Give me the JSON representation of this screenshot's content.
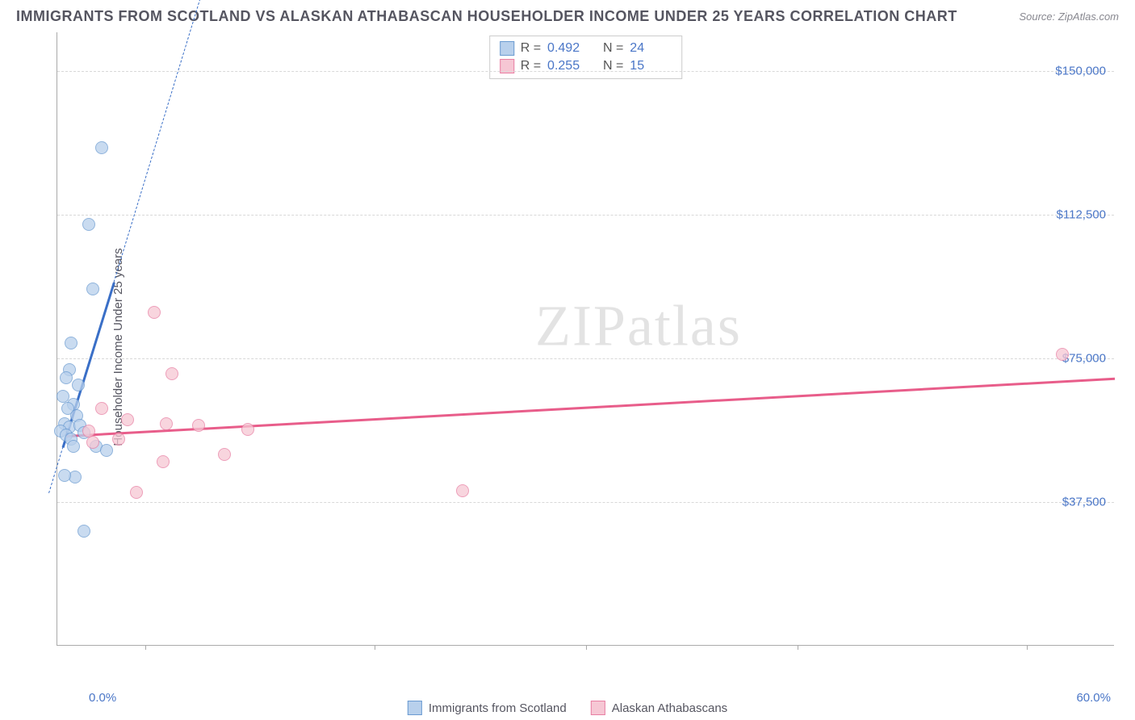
{
  "header": {
    "title": "IMMIGRANTS FROM SCOTLAND VS ALASKAN ATHABASCAN HOUSEHOLDER INCOME UNDER 25 YEARS CORRELATION CHART",
    "source": "Source: ZipAtlas.com"
  },
  "watermark": {
    "text_bold": "ZIP",
    "text_thin": "atlas"
  },
  "chart": {
    "type": "scatter",
    "background_color": "#ffffff",
    "grid_color": "#d8d8d8",
    "axis_color": "#aaaaaa",
    "y_axis": {
      "title": "Householder Income Under 25 years",
      "min": 0,
      "max": 160000,
      "ticks": [
        {
          "value": 37500,
          "label": "$37,500"
        },
        {
          "value": 75000,
          "label": "$75,000"
        },
        {
          "value": 112500,
          "label": "$112,500"
        },
        {
          "value": 150000,
          "label": "$150,000"
        }
      ],
      "label_color": "#4a76c7",
      "label_fontsize": 15
    },
    "x_axis": {
      "min": 0,
      "max": 60,
      "left_label": "0.0%",
      "right_label": "60.0%",
      "tick_positions": [
        5,
        18,
        30,
        42,
        55
      ],
      "label_color": "#4a76c7"
    },
    "series": [
      {
        "name": "Immigrants from Scotland",
        "marker_fill": "#b8d0ec",
        "marker_stroke": "#6b9bd1",
        "marker_opacity": 0.75,
        "marker_radius": 8,
        "trend_color": "#3a6fc7",
        "trend_width": 3,
        "R": "0.492",
        "N": "24",
        "points": [
          {
            "x": 2.5,
            "y": 130000
          },
          {
            "x": 1.8,
            "y": 110000
          },
          {
            "x": 2.0,
            "y": 93000
          },
          {
            "x": 0.8,
            "y": 79000
          },
          {
            "x": 0.7,
            "y": 72000
          },
          {
            "x": 0.5,
            "y": 70000
          },
          {
            "x": 1.2,
            "y": 68000
          },
          {
            "x": 0.3,
            "y": 65000
          },
          {
            "x": 0.9,
            "y": 63000
          },
          {
            "x": 0.6,
            "y": 62000
          },
          {
            "x": 1.1,
            "y": 60000
          },
          {
            "x": 0.4,
            "y": 58000
          },
          {
            "x": 0.7,
            "y": 57000
          },
          {
            "x": 1.3,
            "y": 57500
          },
          {
            "x": 0.2,
            "y": 56000
          },
          {
            "x": 0.5,
            "y": 55000
          },
          {
            "x": 1.5,
            "y": 55500
          },
          {
            "x": 0.8,
            "y": 54000
          },
          {
            "x": 2.2,
            "y": 52000
          },
          {
            "x": 0.9,
            "y": 52000
          },
          {
            "x": 2.8,
            "y": 51000
          },
          {
            "x": 1.0,
            "y": 44000
          },
          {
            "x": 0.4,
            "y": 44500
          },
          {
            "x": 1.5,
            "y": 30000
          }
        ],
        "trend": {
          "x1": 0.3,
          "y1": 52000,
          "x2": 3.2,
          "y2": 95000,
          "dash_x2": 8.5,
          "dash_y2": 175000
        }
      },
      {
        "name": "Alaskan Athabascans",
        "marker_fill": "#f6c7d4",
        "marker_stroke": "#e87fa3",
        "marker_opacity": 0.75,
        "marker_radius": 8,
        "trend_color": "#e85d8a",
        "trend_width": 3,
        "R": "0.255",
        "N": "15",
        "points": [
          {
            "x": 5.5,
            "y": 87000
          },
          {
            "x": 57.0,
            "y": 76000
          },
          {
            "x": 6.5,
            "y": 71000
          },
          {
            "x": 2.5,
            "y": 62000
          },
          {
            "x": 4.0,
            "y": 59000
          },
          {
            "x": 6.2,
            "y": 58000
          },
          {
            "x": 8.0,
            "y": 57500
          },
          {
            "x": 10.8,
            "y": 56500
          },
          {
            "x": 1.8,
            "y": 56000
          },
          {
            "x": 3.5,
            "y": 54000
          },
          {
            "x": 2.0,
            "y": 53000
          },
          {
            "x": 9.5,
            "y": 50000
          },
          {
            "x": 6.0,
            "y": 48000
          },
          {
            "x": 23.0,
            "y": 40500
          },
          {
            "x": 4.5,
            "y": 40000
          }
        ],
        "trend": {
          "x1": 0.5,
          "y1": 55000,
          "x2": 60,
          "y2": 70000
        }
      }
    ],
    "legend": {
      "items": [
        {
          "label": "Immigrants from Scotland",
          "fill": "#b8d0ec",
          "stroke": "#6b9bd1"
        },
        {
          "label": "Alaskan Athabascans",
          "fill": "#f6c7d4",
          "stroke": "#e87fa3"
        }
      ]
    }
  }
}
